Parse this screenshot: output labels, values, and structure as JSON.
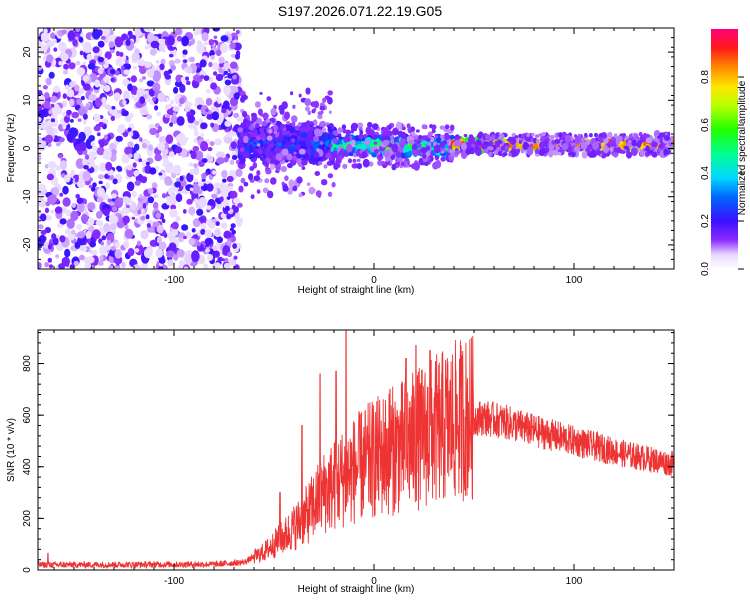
{
  "title": "S197.2026.071.22.19.G05",
  "chart_data": [
    {
      "type": "heatmap",
      "xlabel": "Height of straight line (km)",
      "ylabel": "Frequency (Hz)",
      "xlim": [
        -168,
        150
      ],
      "ylim": [
        -25,
        25
      ],
      "xticks": [
        -100,
        0,
        100
      ],
      "xtick_labels": [
        "-100",
        "0",
        "100"
      ],
      "yticks": [
        -20,
        -10,
        0,
        10,
        20
      ],
      "ytick_labels": [
        "-20",
        "-10",
        "0",
        "10",
        "20"
      ],
      "colorbar": {
        "label": "Normalized spectral amplitude",
        "range": [
          0.0,
          1.0
        ],
        "ticks": [
          0.0,
          0.2,
          0.4,
          0.6,
          0.8
        ],
        "tick_labels": [
          "0.0",
          "0.2",
          "0.4",
          "0.6",
          "0.8"
        ]
      },
      "regions": [
        {
          "name": "noise",
          "x_range": [
            -168,
            -67
          ],
          "freq_range": [
            -25,
            25
          ],
          "amplitude": 0.1
        },
        {
          "name": "rising-signal",
          "x_range": [
            -67,
            -20
          ],
          "freq_center": 1.0,
          "freq_halfwidth": 5,
          "amplitude": 0.25
        },
        {
          "name": "signal",
          "x_range": [
            -20,
            40
          ],
          "freq_center": 0.5,
          "freq_halfwidth": 2,
          "amplitude": 0.5
        },
        {
          "name": "strong-signal",
          "x_range": [
            40,
            150
          ],
          "freq_center": 0.8,
          "freq_halfwidth": 1,
          "amplitude": 0.95
        }
      ]
    },
    {
      "type": "line",
      "xlabel": "Height of straight line (km)",
      "ylabel": "SNR (10 * v/v)",
      "xlim": [
        -168,
        150
      ],
      "ylim": [
        0,
        930
      ],
      "xticks": [
        -100,
        0,
        100
      ],
      "xtick_labels": [
        "-100",
        "0",
        "100"
      ],
      "yticks": [
        0,
        200,
        400,
        600,
        800
      ],
      "ytick_labels": [
        "0",
        "200",
        "400",
        "600",
        "800"
      ],
      "color": "#ee3333",
      "envelope": {
        "x": [
          -168,
          -80,
          -65,
          -55,
          -45,
          -35,
          -25,
          -15,
          -5,
          5,
          15,
          25,
          35,
          45,
          55,
          65,
          80,
          100,
          125,
          150
        ],
        "y": [
          20,
          22,
          30,
          70,
          130,
          200,
          300,
          360,
          410,
          450,
          480,
          520,
          555,
          590,
          590,
          575,
          540,
          500,
          450,
          410
        ]
      },
      "peaks": [
        {
          "x": -163,
          "y": 65
        },
        {
          "x": -47,
          "y": 300
        },
        {
          "x": -36,
          "y": 560
        },
        {
          "x": -27,
          "y": 760
        },
        {
          "x": -19,
          "y": 770
        },
        {
          "x": -14,
          "y": 930
        },
        {
          "x": 8,
          "y": 700
        },
        {
          "x": 16,
          "y": 820
        },
        {
          "x": 21,
          "y": 870
        },
        {
          "x": 28,
          "y": 850
        },
        {
          "x": 33,
          "y": 700
        }
      ]
    }
  ]
}
